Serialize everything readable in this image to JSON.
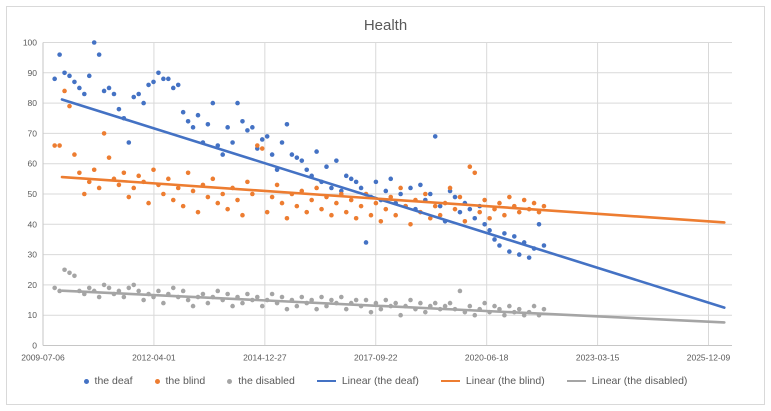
{
  "chart_data": {
    "type": "scatter",
    "title": "Health",
    "grid": true,
    "legend_position": "bottom",
    "x_axis": {
      "min": 2009.512,
      "max": 2026.52,
      "tick_values": [
        2009.512,
        2012.25,
        2014.988,
        2017.726,
        2020.464,
        2023.202,
        2025.94
      ],
      "tick_labels": [
        "2009-07-06",
        "2012-04-01",
        "2014-12-27",
        "2017-09-22",
        "2020-06-18",
        "2023-03-15",
        "2025-12-09"
      ]
    },
    "y_axis": {
      "min": 0,
      "max": 100,
      "step": 10,
      "tick_labels": [
        "0",
        "10",
        "20",
        "30",
        "40",
        "50",
        "60",
        "70",
        "80",
        "90",
        "100"
      ]
    },
    "series": [
      {
        "name": "the deaf",
        "color": "#4472C4",
        "x_start": 2009.8,
        "x_step": 0.122,
        "values": [
          88,
          96,
          90,
          89,
          87,
          85,
          83,
          89,
          100,
          96,
          84,
          85,
          83,
          78,
          75,
          67,
          82,
          83,
          80,
          86,
          87,
          90,
          88,
          88,
          85,
          86,
          77,
          74,
          72,
          76,
          67,
          73,
          80,
          66,
          63,
          72,
          67,
          80,
          74,
          71,
          72,
          65,
          68,
          69,
          63,
          58,
          67,
          73,
          63,
          62,
          61,
          58,
          56,
          64,
          54,
          59,
          52,
          61,
          51,
          56,
          55,
          54,
          52,
          34,
          49,
          54,
          48,
          51,
          55,
          47,
          50,
          46,
          52,
          45,
          53,
          48,
          50,
          69,
          46,
          41,
          51,
          49,
          44,
          47,
          45,
          42,
          46,
          40,
          38,
          35,
          33,
          37,
          31,
          36,
          30,
          34,
          29,
          32,
          40,
          33
        ]
      },
      {
        "name": "the blind",
        "color": "#ED7D31",
        "x_start": 2009.8,
        "x_step": 0.122,
        "values": [
          66,
          66,
          84,
          79,
          63,
          57,
          50,
          54,
          58,
          52,
          70,
          62,
          55,
          53,
          57,
          49,
          52,
          56,
          54,
          47,
          58,
          53,
          50,
          55,
          48,
          52,
          46,
          57,
          51,
          44,
          53,
          49,
          55,
          47,
          50,
          45,
          52,
          48,
          43,
          54,
          50,
          66,
          65,
          44,
          49,
          53,
          47,
          42,
          50,
          46,
          51,
          44,
          48,
          52,
          45,
          49,
          43,
          47,
          50,
          44,
          48,
          42,
          46,
          50,
          43,
          47,
          41,
          45,
          49,
          43,
          52,
          46,
          40,
          48,
          44,
          50,
          42,
          46,
          43,
          47,
          52,
          45,
          49,
          41,
          59,
          57,
          44,
          48,
          42,
          45,
          47,
          43,
          49,
          46,
          44,
          48,
          45,
          47,
          44,
          46
        ]
      },
      {
        "name": "the disabled",
        "color": "#A5A5A5",
        "x_start": 2009.8,
        "x_step": 0.122,
        "values": [
          19,
          18,
          25,
          24,
          23,
          18,
          17,
          19,
          18,
          16,
          20,
          19,
          17,
          18,
          16,
          19,
          20,
          18,
          15,
          17,
          16,
          18,
          14,
          17,
          19,
          16,
          18,
          15,
          13,
          16,
          17,
          14,
          16,
          18,
          15,
          17,
          13,
          16,
          14,
          17,
          15,
          16,
          13,
          15,
          17,
          14,
          16,
          12,
          15,
          13,
          16,
          14,
          15,
          12,
          16,
          13,
          15,
          14,
          16,
          12,
          14,
          15,
          13,
          15,
          11,
          14,
          12,
          15,
          13,
          14,
          10,
          13,
          15,
          12,
          14,
          11,
          13,
          14,
          12,
          13,
          14,
          12,
          18,
          11,
          13,
          10,
          12,
          14,
          11,
          13,
          12,
          10,
          13,
          11,
          12,
          10,
          11,
          13,
          10,
          12
        ]
      }
    ],
    "trendlines": [
      {
        "name": "Linear (the deaf)",
        "color": "#4472C4",
        "x": [
          2009.98,
          2026.33
        ],
        "y": [
          81.2,
          12.5
        ]
      },
      {
        "name": "Linear (the blind)",
        "color": "#ED7D31",
        "x": [
          2009.98,
          2026.33
        ],
        "y": [
          55.6,
          40.6
        ]
      },
      {
        "name": "Linear (the disabled)",
        "color": "#A5A5A5",
        "x": [
          2009.98,
          2026.33
        ],
        "y": [
          18.1,
          7.6
        ]
      }
    ],
    "legend": [
      {
        "label": "the deaf",
        "marker": "dot",
        "color": "#4472C4"
      },
      {
        "label": "the blind",
        "marker": "dot",
        "color": "#ED7D31"
      },
      {
        "label": "the disabled",
        "marker": "dot",
        "color": "#A5A5A5"
      },
      {
        "label": "Linear (the deaf)",
        "marker": "line",
        "color": "#4472C4"
      },
      {
        "label": "Linear (the blind)",
        "marker": "line",
        "color": "#ED7D31"
      },
      {
        "label": "Linear (the disabled)",
        "marker": "line",
        "color": "#A5A5A5"
      }
    ],
    "colors": {
      "gridline": "#d9d9d9",
      "axis": "#c6c6c6",
      "text": "#595959"
    }
  }
}
